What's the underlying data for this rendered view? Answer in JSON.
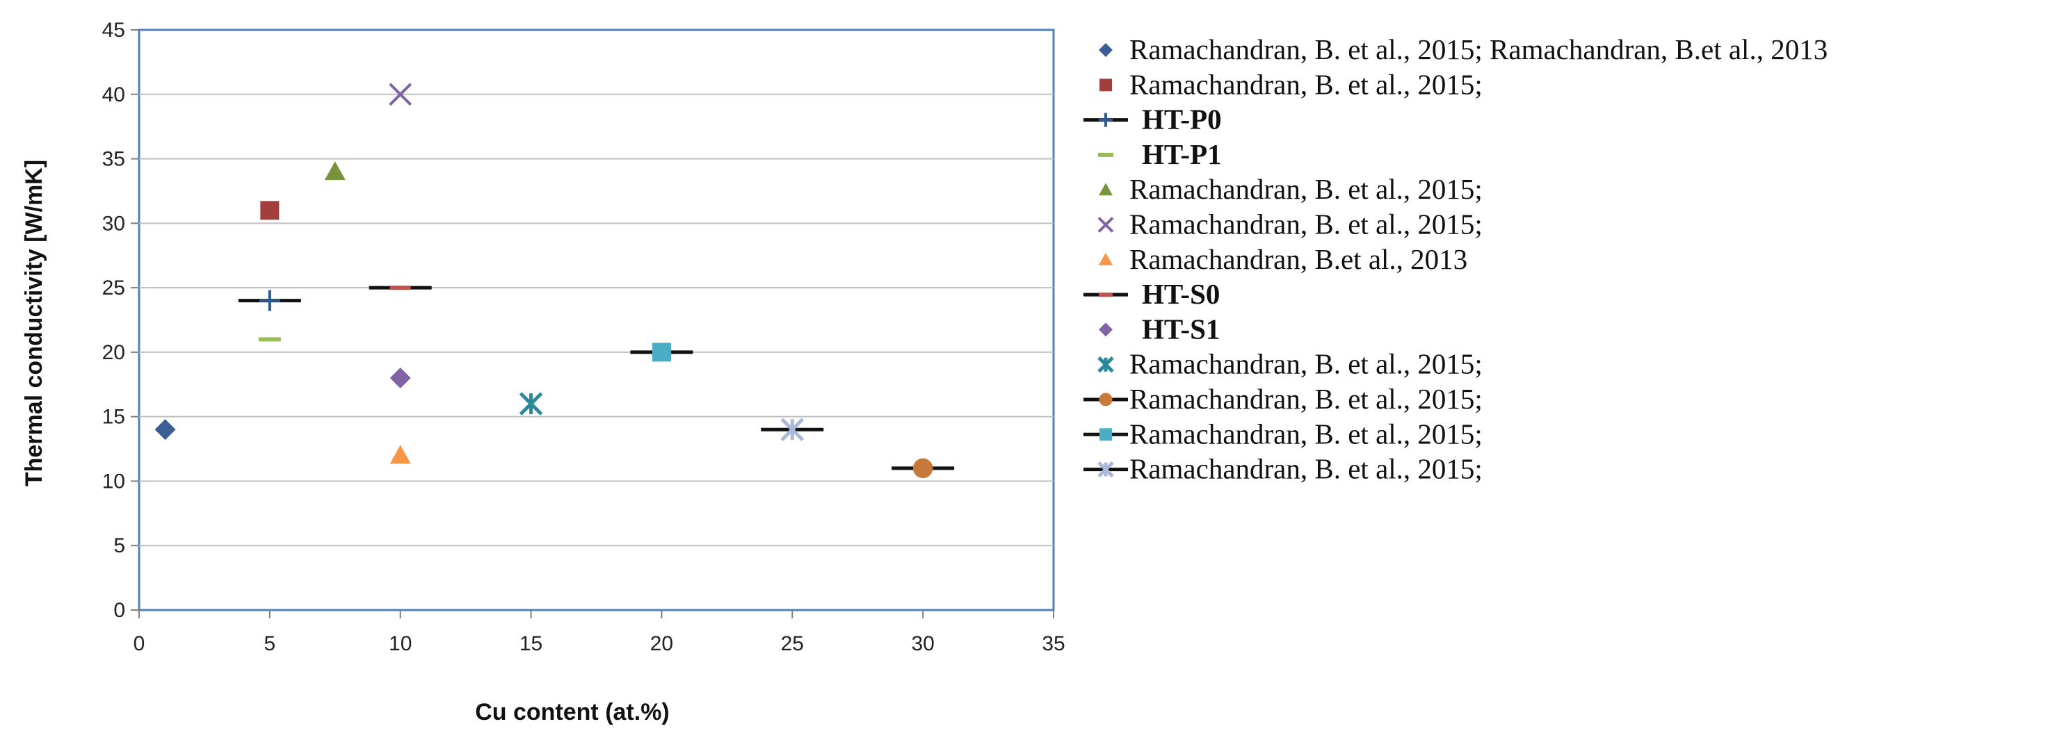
{
  "chart_data": {
    "type": "scatter",
    "title": "",
    "xlabel": "Cu content (at.%)",
    "ylabel": "Thermal conductivity  [W/mK]",
    "xlim": [
      0,
      35
    ],
    "ylim": [
      0,
      45
    ],
    "x_ticks": [
      "0",
      "5",
      "10",
      "15",
      "20",
      "25",
      "30",
      "35"
    ],
    "y_ticks": [
      "0",
      "5",
      "10",
      "15",
      "20",
      "25",
      "30",
      "35",
      "40",
      "45"
    ],
    "grid": "horizontal",
    "legend_position": "right",
    "series": [
      {
        "name": "Ramachandran, B. et al., 2015; Ramachandran, B.et al., 2013",
        "marker": "diamond",
        "line": false,
        "bold": false,
        "color": "#3a5f94",
        "points": [
          [
            1,
            14
          ]
        ]
      },
      {
        "name": "Ramachandran, B. et al., 2015;",
        "marker": "square",
        "line": false,
        "bold": false,
        "color": "#a33f3b",
        "points": [
          [
            5,
            31
          ]
        ]
      },
      {
        "name": "HT-P0",
        "marker": "plus",
        "line": true,
        "bold": true,
        "color": "#2f5a8f",
        "points": [
          [
            5,
            24
          ]
        ]
      },
      {
        "name": "HT-P1",
        "marker": "dash",
        "line": false,
        "bold": true,
        "color": "#9bbb59",
        "points": [
          [
            5,
            21
          ]
        ]
      },
      {
        "name": "Ramachandran, B. et al., 2015;",
        "marker": "triangle",
        "line": false,
        "bold": false,
        "color": "#77933c",
        "points": [
          [
            7.5,
            34
          ]
        ]
      },
      {
        "name": "Ramachandran, B. et al., 2015;",
        "marker": "x",
        "line": false,
        "bold": false,
        "color": "#7f63a3",
        "points": [
          [
            10,
            40
          ]
        ]
      },
      {
        "name": "Ramachandran, B.et al., 2013",
        "marker": "triangle",
        "line": false,
        "bold": false,
        "color": "#f79646",
        "points": [
          [
            10,
            12
          ]
        ]
      },
      {
        "name": "HT-S0",
        "marker": "dash",
        "line": true,
        "bold": true,
        "color": "#c0504d",
        "points": [
          [
            10,
            25
          ]
        ]
      },
      {
        "name": "HT-S1",
        "marker": "diamond",
        "line": false,
        "bold": true,
        "color": "#7f63a3",
        "points": [
          [
            10,
            18
          ]
        ]
      },
      {
        "name": "Ramachandran, B. et al., 2015;",
        "marker": "star",
        "line": false,
        "bold": false,
        "color": "#2a8a9c",
        "points": [
          [
            15,
            16
          ]
        ]
      },
      {
        "name": "Ramachandran, B. et al., 2015;",
        "marker": "circle",
        "line": true,
        "bold": false,
        "color": "#c8793a",
        "points": [
          [
            30,
            11
          ]
        ]
      },
      {
        "name": "Ramachandran, B. et al., 2015;",
        "marker": "square",
        "line": true,
        "bold": false,
        "color": "#4bacc6",
        "points": [
          [
            20,
            20
          ]
        ]
      },
      {
        "name": "Ramachandran, B. et al., 2015;",
        "marker": "star",
        "line": true,
        "bold": false,
        "color": "#a9b8d8",
        "points": [
          [
            25,
            14
          ]
        ]
      }
    ]
  }
}
